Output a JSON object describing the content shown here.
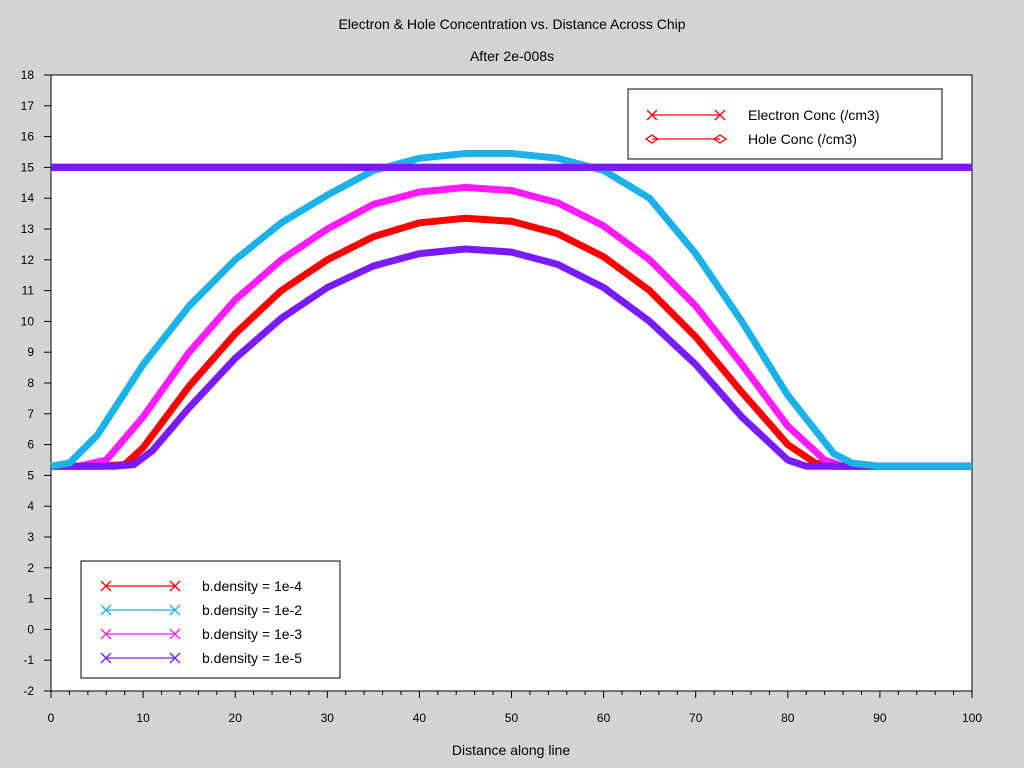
{
  "chart_data": {
    "type": "line",
    "title": "Electron & Hole Concentration vs. Distance Across Chip",
    "subtitle": "After 2e-008s",
    "xlabel": "Distance along line",
    "ylabel": "",
    "xlim": [
      0,
      100
    ],
    "ylim": [
      -2,
      18
    ],
    "xticks": [
      0,
      10,
      20,
      30,
      40,
      50,
      60,
      70,
      80,
      90,
      100
    ],
    "yticks": [
      -2,
      -1,
      0,
      1,
      2,
      3,
      4,
      5,
      6,
      7,
      8,
      9,
      10,
      11,
      12,
      13,
      14,
      15,
      16,
      17,
      18
    ],
    "grid": false,
    "legends": [
      {
        "placement": "top-right",
        "entries": [
          {
            "label": "Electron Conc (/cm3)",
            "marker": "x",
            "color": "#ff0000"
          },
          {
            "label": "Hole Conc (/cm3)",
            "marker": "diamond",
            "color": "#ff0000"
          }
        ]
      },
      {
        "placement": "bottom-left",
        "entries": [
          {
            "label": "b.density = 1e-4",
            "marker": "x",
            "color": "#ff0000"
          },
          {
            "label": "b.density = 1e-2",
            "marker": "x",
            "color": "#1ab2e8"
          },
          {
            "label": "b.density = 1e-3",
            "marker": "x",
            "color": "#ff1aff"
          },
          {
            "label": "b.density = 1e-5",
            "marker": "x",
            "color": "#7a1aff"
          }
        ]
      }
    ],
    "series": [
      {
        "name": "b.density = 1e-4",
        "color": "#ff0000",
        "quantity": "Electron Conc (/cm3)",
        "x": [
          0,
          5,
          8,
          10,
          15,
          20,
          25,
          30,
          35,
          40,
          45,
          50,
          55,
          60,
          65,
          70,
          75,
          80,
          83,
          85,
          90,
          100
        ],
        "y": [
          5.3,
          5.3,
          5.35,
          5.9,
          7.9,
          9.6,
          11.0,
          12.0,
          12.75,
          13.2,
          13.35,
          13.25,
          12.85,
          12.1,
          11.0,
          9.5,
          7.7,
          6.0,
          5.4,
          5.3,
          5.3,
          5.3
        ]
      },
      {
        "name": "b.density = 1e-4 (Hole)",
        "color": "#ff0000",
        "quantity": "Hole Conc (/cm3)",
        "x": [
          0,
          100
        ],
        "y": [
          15.0,
          15.0
        ]
      },
      {
        "name": "b.density = 1e-2",
        "color": "#1ab2e8",
        "quantity": "Electron Conc (/cm3)",
        "x": [
          0,
          2,
          5,
          10,
          15,
          20,
          25,
          30,
          35,
          40,
          45,
          50,
          55,
          60,
          65,
          70,
          75,
          80,
          85,
          87,
          90,
          100
        ],
        "y": [
          5.3,
          5.4,
          6.3,
          8.6,
          10.5,
          12.0,
          13.2,
          14.1,
          14.9,
          15.3,
          15.45,
          15.45,
          15.3,
          14.9,
          14.0,
          12.2,
          10.0,
          7.6,
          5.7,
          5.4,
          5.3,
          5.3
        ]
      },
      {
        "name": "b.density = 1e-2 (Hole)",
        "color": "#1ab2e8",
        "quantity": "Hole Conc (/cm3)",
        "x": [
          0,
          100
        ],
        "y": [
          15.0,
          15.0
        ]
      },
      {
        "name": "b.density = 1e-3",
        "color": "#ff1aff",
        "quantity": "Electron Conc (/cm3)",
        "x": [
          0,
          3,
          6,
          10,
          15,
          20,
          25,
          30,
          35,
          40,
          45,
          50,
          55,
          60,
          65,
          70,
          75,
          80,
          84,
          86,
          90,
          100
        ],
        "y": [
          5.3,
          5.3,
          5.5,
          6.9,
          9.0,
          10.7,
          12.0,
          13.0,
          13.8,
          14.2,
          14.35,
          14.25,
          13.85,
          13.1,
          12.0,
          10.5,
          8.6,
          6.6,
          5.5,
          5.3,
          5.3,
          5.3
        ]
      },
      {
        "name": "b.density = 1e-3 (Hole)",
        "color": "#ff1aff",
        "quantity": "Hole Conc (/cm3)",
        "x": [
          0,
          100
        ],
        "y": [
          15.0,
          15.0
        ]
      },
      {
        "name": "b.density = 1e-5",
        "color": "#7a1aff",
        "quantity": "Electron Conc (/cm3)",
        "x": [
          0,
          7,
          9,
          11,
          15,
          20,
          25,
          30,
          35,
          40,
          45,
          50,
          55,
          60,
          65,
          70,
          75,
          80,
          82,
          84,
          90,
          100
        ],
        "y": [
          5.3,
          5.3,
          5.35,
          5.8,
          7.2,
          8.8,
          10.1,
          11.1,
          11.8,
          12.2,
          12.35,
          12.25,
          11.85,
          11.1,
          10.0,
          8.6,
          6.9,
          5.5,
          5.3,
          5.3,
          5.3,
          5.3
        ]
      },
      {
        "name": "b.density = 1e-5 (Hole)",
        "color": "#7a1aff",
        "quantity": "Hole Conc (/cm3)",
        "x": [
          0,
          100
        ],
        "y": [
          15.0,
          15.0
        ]
      }
    ]
  }
}
